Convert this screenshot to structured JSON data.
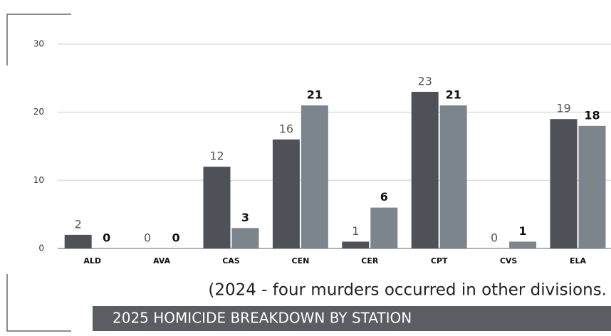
{
  "chart_data": {
    "type": "bar",
    "categories": [
      "ALD",
      "AVA",
      "CAS",
      "CEN",
      "CER",
      "CPT",
      "CVS",
      "ELA"
    ],
    "series": [
      {
        "color": "#4e5258",
        "values": [
          2,
          0,
          12,
          16,
          1,
          23,
          0,
          19
        ]
      },
      {
        "color": "#7d858c",
        "values": [
          0,
          0,
          3,
          21,
          6,
          21,
          1,
          18
        ]
      }
    ],
    "ylim": [
      0,
      30
    ],
    "yticks": [
      0,
      10,
      20,
      30
    ],
    "grid": true,
    "caption": "(2024 - four murders occurred in other divisions.",
    "banner": "2025 HOMICIDE BREAKDOWN BY STATION"
  }
}
